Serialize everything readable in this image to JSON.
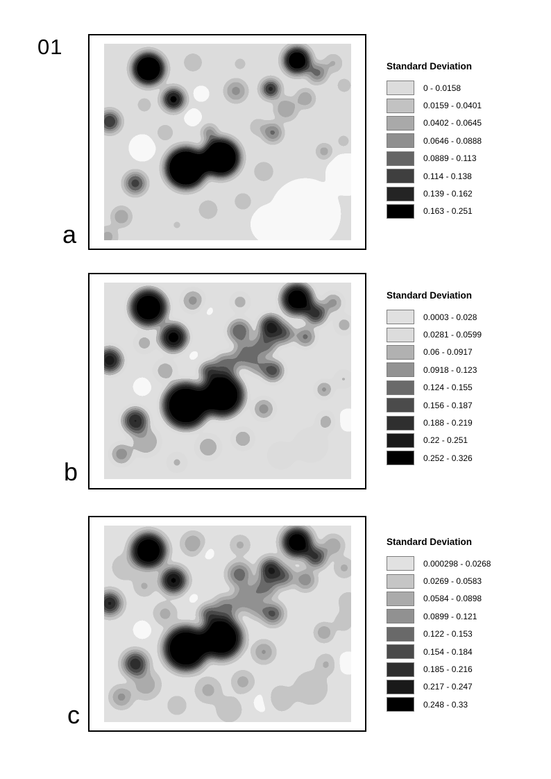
{
  "figure": {
    "number": "01"
  },
  "colors": {
    "page_background": "#ffffff",
    "frame_border": "#000000",
    "swatch_border": "#7d7d7d",
    "text": "#000000"
  },
  "panels": [
    {
      "label": "a",
      "legend": {
        "title": "Standard Deviation",
        "classes": [
          {
            "range": "0 - 0.0158",
            "color": "#dcdcdc"
          },
          {
            "range": "0.0159 - 0.0401",
            "color": "#c2c2c2"
          },
          {
            "range": "0.0402 - 0.0645",
            "color": "#a9a9a9"
          },
          {
            "range": "0.0646 - 0.0888",
            "color": "#8f8f8f"
          },
          {
            "range": "0.0889 - 0.113",
            "color": "#656565"
          },
          {
            "range": "0.114 - 0.138",
            "color": "#3f3f3f"
          },
          {
            "range": "0.139 - 0.162",
            "color": "#242424"
          },
          {
            "range": "0.163 - 0.251",
            "color": "#000000"
          }
        ]
      },
      "map": {
        "background": 0.85,
        "white_level": 0.975,
        "blur": 6,
        "blobs": [
          [
            290,
            245,
            48,
            0.99
          ],
          [
            240,
            260,
            26,
            0.99
          ],
          [
            350,
            188,
            28,
            0.99
          ],
          [
            55,
            150,
            17,
            0.99
          ],
          [
            128,
            106,
            11,
            0.99
          ],
          [
            140,
            72,
            10,
            0.98
          ],
          [
            128,
            27,
            14,
            0.7
          ],
          [
            196,
            29,
            11,
            0.73
          ],
          [
            262,
            94,
            16,
            0.58
          ],
          [
            290,
            79,
            12,
            0.52
          ],
          [
            330,
            28,
            12,
            0.63
          ],
          [
            346,
            60,
            11,
            0.7
          ],
          [
            230,
            184,
            13,
            0.65
          ],
          [
            150,
            239,
            16,
            0.73
          ],
          [
            200,
            227,
            13,
            0.7
          ],
          [
            88,
            128,
            14,
            0.73
          ],
          [
            58,
            88,
            12,
            0.72
          ],
          [
            345,
            140,
            11,
            0.73
          ],
          [
            105,
            261,
            12,
            0.76
          ],
          [
            222,
            120,
            12,
            0.68
          ],
          [
            190,
            68,
            15,
            0.52
          ],
          [
            5,
            278,
            14,
            0.62
          ],
          [
            25,
            249,
            13,
            0.55
          ],
          [
            317,
            155,
            9,
            0.5
          ],
          [
            243,
            128,
            13,
            0.4
          ],
          [
            307,
            42,
            13,
            0.38
          ],
          [
            152,
            128,
            9,
            0.35
          ],
          [
            45,
            201,
            15,
            0.28
          ],
          [
            8,
            112,
            15,
            0.22
          ],
          [
            240,
            65,
            13,
            0.15
          ],
          [
            100,
            80,
            16,
            0.08
          ],
          [
            278,
            24,
            20,
            0.02
          ],
          [
            64,
            36,
            24,
            0
          ],
          [
            118,
            179,
            31,
            0
          ],
          [
            168,
            164,
            29,
            0
          ],
          [
            143,
            172,
            18,
            0.04
          ]
        ]
      }
    },
    {
      "label": "b",
      "legend": {
        "title": "Standard Deviation",
        "classes": [
          {
            "range": "0.0003 - 0.028",
            "color": "#e0e0e0"
          },
          {
            "range": "0.0281 - 0.0599",
            "color": "#dcdcdc"
          },
          {
            "range": "0.06 - 0.0917",
            "color": "#b1b1b1"
          },
          {
            "range": "0.0918 - 0.123",
            "color": "#929292"
          },
          {
            "range": "0.124 - 0.155",
            "color": "#6a6a6a"
          },
          {
            "range": "0.156 - 0.187",
            "color": "#4b4b4b"
          },
          {
            "range": "0.188 - 0.219",
            "color": "#2f2f2f"
          },
          {
            "range": "0.22 - 0.251",
            "color": "#1a1a1a"
          },
          {
            "range": "0.252 - 0.326",
            "color": "#000000"
          }
        ]
      },
      "map": {
        "background": 0.85,
        "white_level": 0.975,
        "blur": 7,
        "blobs": [
          [
            352,
            198,
            18,
            0.95
          ],
          [
            55,
            150,
            15,
            0.95
          ],
          [
            129,
            105,
            10,
            0.95
          ],
          [
            150,
            40,
            12,
            0.93
          ],
          [
            128,
            26,
            15,
            0.55
          ],
          [
            196,
            28,
            12,
            0.6
          ],
          [
            290,
            78,
            13,
            0.42
          ],
          [
            330,
            29,
            13,
            0.52
          ],
          [
            346,
            61,
            12,
            0.6
          ],
          [
            230,
            182,
            14,
            0.52
          ],
          [
            150,
            237,
            17,
            0.63
          ],
          [
            200,
            225,
            14,
            0.6
          ],
          [
            88,
            127,
            15,
            0.62
          ],
          [
            58,
            87,
            13,
            0.62
          ],
          [
            345,
            139,
            12,
            0.66
          ],
          [
            105,
            259,
            13,
            0.66
          ],
          [
            60,
            229,
            20,
            0.62
          ],
          [
            298,
            234,
            24,
            0.7
          ],
          [
            255,
            249,
            20,
            0.72
          ],
          [
            222,
            119,
            13,
            0.5
          ],
          [
            320,
            200,
            13,
            0.62
          ],
          [
            205,
            104,
            18,
            0.45
          ],
          [
            232,
            88,
            16,
            0.4
          ],
          [
            175,
            120,
            17,
            0.42
          ],
          [
            258,
            73,
            14,
            0.32
          ],
          [
            195,
            70,
            16,
            0.38
          ],
          [
            317,
            154,
            10,
            0.45
          ],
          [
            25,
            247,
            14,
            0.5
          ],
          [
            305,
            45,
            14,
            0.18
          ],
          [
            240,
            63,
            15,
            0.1
          ],
          [
            150,
            127,
            11,
            0.22
          ],
          [
            243,
            127,
            14,
            0.28
          ],
          [
            45,
            199,
            17,
            0.18
          ],
          [
            8,
            112,
            17,
            0.12
          ],
          [
            100,
            79,
            19,
            0.05
          ],
          [
            64,
            36,
            26,
            0
          ],
          [
            278,
            24,
            22,
            0
          ],
          [
            118,
            177,
            33,
            0
          ],
          [
            170,
            162,
            31,
            0
          ],
          [
            144,
            170,
            20,
            0.03
          ]
        ]
      }
    },
    {
      "label": "c",
      "legend": {
        "title": "Standard Deviation",
        "classes": [
          {
            "range": "0.000298 - 0.0268",
            "color": "#e1e1e1"
          },
          {
            "range": "0.0269 - 0.0583",
            "color": "#c5c5c5"
          },
          {
            "range": "0.0584 - 0.0898",
            "color": "#ababab"
          },
          {
            "range": "0.0899 - 0.121",
            "color": "#919191"
          },
          {
            "range": "0.122 - 0.153",
            "color": "#696969"
          },
          {
            "range": "0.154 - 0.184",
            "color": "#4a4a4a"
          },
          {
            "range": "0.185 - 0.216",
            "color": "#2e2e2e"
          },
          {
            "range": "0.217 - 0.247",
            "color": "#191919"
          },
          {
            "range": "0.248 - 0.33",
            "color": "#000000"
          }
        ]
      },
      "map": {
        "background": 0.85,
        "white_level": 0.975,
        "blur": 7,
        "blobs": [
          [
            352,
            198,
            18,
            0.95
          ],
          [
            55,
            150,
            15,
            0.95
          ],
          [
            129,
            105,
            10,
            0.95
          ],
          [
            150,
            40,
            12,
            0.94
          ],
          [
            230,
            255,
            18,
            0.93
          ],
          [
            30,
            60,
            20,
            0.75
          ],
          [
            352,
            110,
            16,
            0.75
          ],
          [
            180,
            265,
            20,
            0.75
          ],
          [
            128,
            26,
            15,
            0.6
          ],
          [
            196,
            28,
            12,
            0.64
          ],
          [
            290,
            78,
            13,
            0.46
          ],
          [
            330,
            29,
            13,
            0.56
          ],
          [
            346,
            61,
            12,
            0.64
          ],
          [
            230,
            182,
            14,
            0.56
          ],
          [
            150,
            237,
            17,
            0.67
          ],
          [
            200,
            225,
            14,
            0.64
          ],
          [
            88,
            127,
            15,
            0.66
          ],
          [
            58,
            87,
            13,
            0.66
          ],
          [
            345,
            139,
            12,
            0.7
          ],
          [
            105,
            259,
            13,
            0.7
          ],
          [
            60,
            229,
            20,
            0.66
          ],
          [
            298,
            234,
            24,
            0.73
          ],
          [
            255,
            249,
            20,
            0.75
          ],
          [
            222,
            119,
            13,
            0.54
          ],
          [
            320,
            200,
            13,
            0.66
          ],
          [
            205,
            104,
            18,
            0.5
          ],
          [
            232,
            88,
            16,
            0.44
          ],
          [
            175,
            120,
            17,
            0.46
          ],
          [
            258,
            73,
            14,
            0.36
          ],
          [
            195,
            70,
            16,
            0.42
          ],
          [
            317,
            154,
            10,
            0.48
          ],
          [
            25,
            247,
            14,
            0.54
          ],
          [
            305,
            45,
            14,
            0.22
          ],
          [
            240,
            63,
            15,
            0.14
          ],
          [
            150,
            127,
            11,
            0.26
          ],
          [
            243,
            127,
            14,
            0.32
          ],
          [
            45,
            199,
            17,
            0.22
          ],
          [
            8,
            112,
            16,
            0.16
          ],
          [
            100,
            79,
            18,
            0.08
          ],
          [
            64,
            36,
            25,
            0
          ],
          [
            278,
            24,
            21,
            0
          ],
          [
            118,
            177,
            32,
            0
          ],
          [
            169,
            162,
            30,
            0
          ],
          [
            144,
            170,
            19,
            0.04
          ]
        ]
      }
    }
  ]
}
